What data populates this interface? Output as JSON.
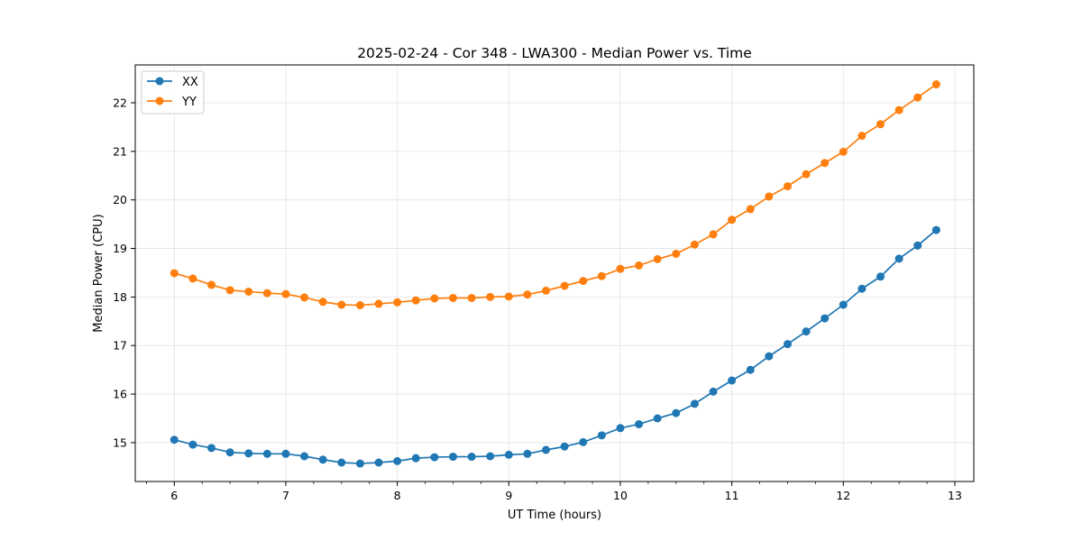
{
  "chart_data": {
    "type": "line",
    "title": "2025-02-24 - Cor 348 - LWA300 - Median Power vs. Time",
    "xlabel": "UT Time (hours)",
    "ylabel": "Median Power (CPU)",
    "xlim": [
      5.65,
      13.17
    ],
    "ylim": [
      14.2,
      22.78
    ],
    "xticks": [
      6,
      7,
      8,
      9,
      10,
      11,
      12,
      13
    ],
    "yticks": [
      15,
      16,
      17,
      18,
      19,
      20,
      21,
      22
    ],
    "grid": true,
    "legend_position": "top-left",
    "x": [
      6.0,
      6.1667,
      6.3333,
      6.5,
      6.6667,
      6.8333,
      7.0,
      7.1667,
      7.3333,
      7.5,
      7.6667,
      7.8333,
      8.0,
      8.1667,
      8.3333,
      8.5,
      8.6667,
      8.8333,
      9.0,
      9.1667,
      9.3333,
      9.5,
      9.6667,
      9.8333,
      10.0,
      10.1667,
      10.3333,
      10.5,
      10.6667,
      10.8333,
      11.0,
      11.1667,
      11.3333,
      11.5,
      11.6667,
      11.8333,
      12.0,
      12.1667,
      12.3333,
      12.5,
      12.6667,
      12.8333
    ],
    "series": [
      {
        "name": "XX",
        "color": "#1f77b4",
        "values": [
          15.06,
          14.96,
          14.89,
          14.8,
          14.78,
          14.77,
          14.77,
          14.72,
          14.65,
          14.59,
          14.57,
          14.59,
          14.62,
          14.68,
          14.7,
          14.71,
          14.71,
          14.72,
          14.75,
          14.77,
          14.85,
          14.92,
          15.01,
          15.15,
          15.3,
          15.38,
          15.5,
          15.61,
          15.8,
          16.05,
          16.28,
          16.5,
          16.78,
          17.03,
          17.29,
          17.56,
          17.84,
          18.17,
          18.42,
          18.79,
          19.06,
          19.38
        ]
      },
      {
        "name": "YY",
        "color": "#ff7f0e",
        "values": [
          18.49,
          18.38,
          18.25,
          18.14,
          18.11,
          18.08,
          18.06,
          17.99,
          17.9,
          17.84,
          17.83,
          17.86,
          17.89,
          17.93,
          17.97,
          17.98,
          17.98,
          18.0,
          18.01,
          18.05,
          18.13,
          18.23,
          18.33,
          18.43,
          18.58,
          18.65,
          18.78,
          18.89,
          19.08,
          19.29,
          19.59,
          19.81,
          20.07,
          20.28,
          20.53,
          20.76,
          20.99,
          21.32,
          21.56,
          21.85,
          22.11,
          22.38
        ]
      }
    ]
  }
}
